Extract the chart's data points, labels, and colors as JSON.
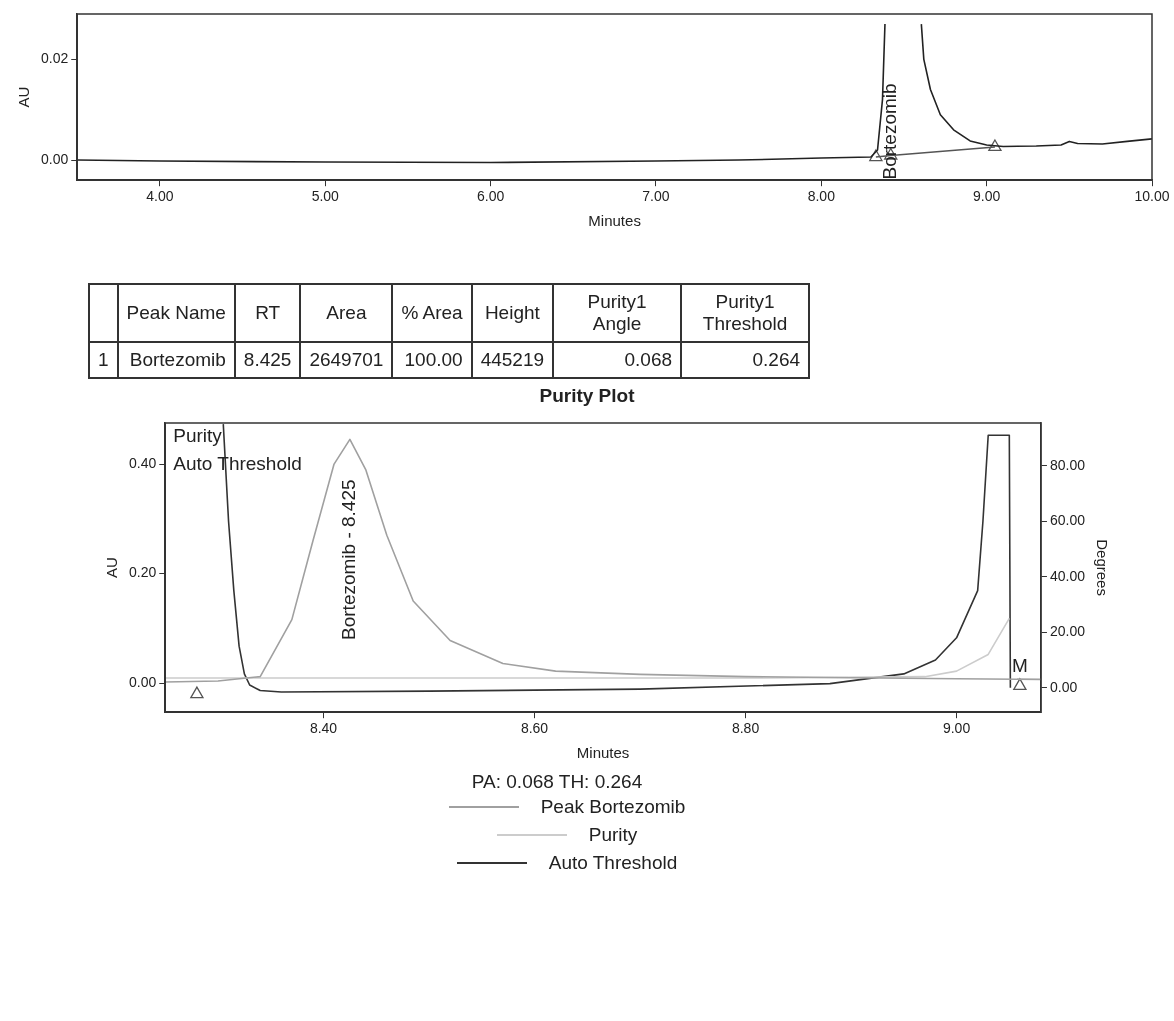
{
  "chart_data": [
    {
      "type": "line",
      "xlabel": "Minutes",
      "ylabel": "AU",
      "xlim": [
        3.5,
        10
      ],
      "ylim": [
        -0.004,
        0.029
      ],
      "xticks": [
        {
          "value": 4,
          "label": "4.00"
        },
        {
          "value": 5,
          "label": "5.00"
        },
        {
          "value": 6,
          "label": "6.00"
        },
        {
          "value": 7,
          "label": "7.00"
        },
        {
          "value": 8,
          "label": "8.00"
        },
        {
          "value": 9,
          "label": "9.00"
        },
        {
          "value": 10,
          "label": "10.00"
        }
      ],
      "yticks": [
        {
          "value": 0,
          "label": "0.00"
        },
        {
          "value": 0.02,
          "label": "0.02"
        }
      ],
      "series": [
        {
          "color": "#222222",
          "x": [
            3.5,
            4,
            5,
            6,
            7,
            7.5,
            8,
            8.3,
            8.34,
            8.37,
            8.385,
            8.5,
            8.605,
            8.62,
            8.66,
            8.72,
            8.8,
            8.9,
            9.0,
            9.1,
            9.3,
            9.45,
            9.5,
            9.55,
            9.7,
            9.85,
            10
          ],
          "values": [
            0,
            -0.0002,
            -0.0004,
            -0.0005,
            -0.0002,
            0,
            0.0004,
            0.0006,
            0.002,
            0.012,
            0.027,
            null,
            0.027,
            0.02,
            0.014,
            0.009,
            0.006,
            0.0038,
            0.003,
            0.0027,
            0.0028,
            0.003,
            0.0037,
            0.0033,
            0.0032,
            0.0037,
            0.0042
          ]
        },
        {
          "type": "line",
          "color": "#555555",
          "marker": "triangle",
          "x": [
            8.33,
            8.42,
            9.05
          ],
          "values": [
            0.0006,
            0.0009,
            0.0026
          ]
        }
      ],
      "annotations": [
        {
          "text": "Bortezomib",
          "x": 8.42,
          "y": 0.0009
        }
      ]
    },
    {
      "type": "other",
      "categories": [
        null,
        "Peak Name",
        "RT",
        "Area",
        "% Area",
        "Height",
        "Purity1 Angle",
        "Purity1 Threshold"
      ],
      "cell_labels": [
        [
          "1",
          "Bortezomib",
          "8.425",
          "2649701",
          "100.00",
          "445219",
          "0.068",
          "0.264"
        ]
      ]
    },
    {
      "type": "line",
      "title": "Purity Plot",
      "xlabel": "Minutes",
      "ylabel": "AU",
      "y2label": "Degrees",
      "legend": "bottom",
      "xlim": [
        8.25,
        9.08
      ],
      "ylim": [
        -0.053,
        0.475
      ],
      "y2lim": [
        -8.8,
        95.4
      ],
      "xticks": [
        {
          "value": 8.4,
          "label": "8.40"
        },
        {
          "value": 8.6,
          "label": "8.60"
        },
        {
          "value": 8.8,
          "label": "8.80"
        },
        {
          "value": 9.0,
          "label": "9.00"
        }
      ],
      "yticks": [
        {
          "value": 0,
          "label": "0.00"
        },
        {
          "value": 0.2,
          "label": "0.20"
        },
        {
          "value": 0.4,
          "label": "0.40"
        }
      ],
      "y2ticks": [
        {
          "value": 0,
          "label": "0.00"
        },
        {
          "value": 20,
          "label": "20.00"
        },
        {
          "value": 40,
          "label": "40.00"
        },
        {
          "value": 60,
          "label": "60.00"
        },
        {
          "value": 80,
          "label": "80.00"
        }
      ],
      "series": [
        {
          "name": "Peak Bortezomib",
          "color": "#a0a0a0",
          "x": [
            8.25,
            8.3,
            8.34,
            8.37,
            8.39,
            8.41,
            8.425,
            8.44,
            8.46,
            8.485,
            8.52,
            8.57,
            8.62,
            8.7,
            8.8,
            8.9,
            9.0,
            9.08
          ],
          "values": [
            0.002,
            0.004,
            0.012,
            0.116,
            0.26,
            0.4,
            0.445,
            0.39,
            0.27,
            0.15,
            0.078,
            0.036,
            0.022,
            0.016,
            0.012,
            0.01,
            0.008,
            0.007
          ]
        },
        {
          "name": "Purity",
          "color": "#cccccc",
          "axis": "y2",
          "x": [
            8.25,
            8.5,
            8.8,
            8.97,
            9.0,
            9.03,
            9.05
          ],
          "values": [
            3.5,
            3.5,
            3.5,
            4,
            6,
            12,
            25
          ]
        },
        {
          "name": "Auto Threshold",
          "color": "#333333",
          "axis": "y2",
          "x": [
            8.305,
            8.31,
            8.315,
            8.32,
            8.325,
            8.33,
            8.34,
            8.36,
            8.5,
            8.7,
            8.88,
            8.95,
            8.98,
            9.0,
            9.02,
            9.025,
            9.03,
            9.05,
            9.051
          ],
          "values": [
            95,
            60,
            35,
            15,
            5,
            1,
            -1,
            -1.5,
            -1.2,
            -0.5,
            1.5,
            5,
            10,
            18,
            35,
            60,
            91,
            91,
            0
          ]
        },
        {
          "type": "scatter",
          "color": "#555555",
          "marker": "triangle",
          "x": [
            8.28,
            9.06
          ],
          "values": [
            -0.02,
            -0.005
          ]
        }
      ],
      "annotations": [
        {
          "text": "Bortezomib - 8.425",
          "x": 8.425,
          "y": 0.445
        },
        {
          "text": "M",
          "x": 9.06,
          "y": 0.012
        },
        "Purity",
        "Auto Threshold",
        "PA: 0.068  TH: 0.264"
      ]
    }
  ]
}
